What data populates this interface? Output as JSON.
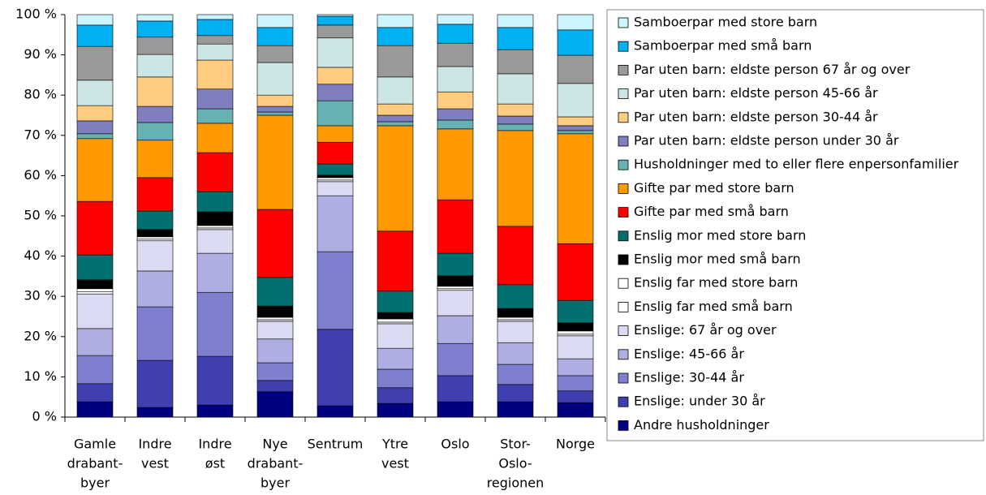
{
  "chart_data": {
    "type": "stacked_bar",
    "categories": [
      [
        "Gamle",
        "drabant-",
        "byer"
      ],
      [
        "Indre",
        "vest"
      ],
      [
        "Indre",
        "øst"
      ],
      [
        "Nye",
        "drabant-",
        "byer"
      ],
      [
        "Sentrum"
      ],
      [
        "Ytre",
        "vest"
      ],
      [
        "Oslo"
      ],
      [
        "Stor-",
        "Oslo-",
        "regionen"
      ],
      [
        "Norge"
      ]
    ],
    "ylim": [
      0,
      100
    ],
    "yticks": [
      {
        "value": 0,
        "label": "0 %"
      },
      {
        "value": 10,
        "label": "10 %"
      },
      {
        "value": 20,
        "label": "20 %"
      },
      {
        "value": 30,
        "label": "30 %"
      },
      {
        "value": 40,
        "label": "40 %"
      },
      {
        "value": 50,
        "label": "50 %"
      },
      {
        "value": 60,
        "label": "60 %"
      },
      {
        "value": 70,
        "label": "70 %"
      },
      {
        "value": 80,
        "label": "80 %"
      },
      {
        "value": 90,
        "label": "90 %"
      },
      {
        "value": 100,
        "label": "100 %"
      }
    ],
    "legend": "right",
    "series": [
      {
        "name": "Andre husholdninger",
        "color": "#000080",
        "values": [
          3.8,
          2.4,
          3.0,
          6.3,
          2.8,
          3.4,
          3.8,
          3.8,
          3.6
        ]
      },
      {
        "name": "Enslige: under 30 år",
        "color": "#3f3fb0",
        "values": [
          4.5,
          11.7,
          12.1,
          2.8,
          19.0,
          3.9,
          6.5,
          4.3,
          2.9
        ]
      },
      {
        "name": "Enslige: 30-44 år",
        "color": "#7f7fcf",
        "values": [
          7.0,
          13.3,
          15.9,
          4.4,
          19.3,
          4.6,
          8.0,
          5.0,
          3.8
        ]
      },
      {
        "name": "Enslige: 45-66 år",
        "color": "#aeaee2",
        "values": [
          6.7,
          8.9,
          9.7,
          5.9,
          13.9,
          5.2,
          6.9,
          5.4,
          4.2
        ]
      },
      {
        "name": "Enslige: 67 år og over",
        "color": "#dadaf2",
        "values": [
          8.6,
          7.5,
          5.9,
          4.4,
          3.5,
          6.1,
          6.3,
          5.3,
          5.7
        ]
      },
      {
        "name": "Enslig far med små barn",
        "color": "#ffffff",
        "values": [
          0.6,
          0.4,
          0.4,
          0.4,
          0.4,
          0.4,
          0.4,
          0.4,
          0.4
        ]
      },
      {
        "name": "Enslig far med store barn",
        "color": "#ffffff",
        "values": [
          0.7,
          0.6,
          0.6,
          0.6,
          0.6,
          0.8,
          0.6,
          0.6,
          0.8
        ]
      },
      {
        "name": "Enslig mor med små barn",
        "color": "#000000",
        "values": [
          2.2,
          1.8,
          3.4,
          2.8,
          0.6,
          1.6,
          2.6,
          2.2,
          2.0
        ]
      },
      {
        "name": "Enslig mor med store barn",
        "color": "#007070",
        "values": [
          6.2,
          4.6,
          5.0,
          7.1,
          2.8,
          5.3,
          5.6,
          5.9,
          5.6
        ]
      },
      {
        "name": "Gifte par med små barn",
        "color": "#ff0000",
        "values": [
          13.3,
          8.3,
          9.7,
          16.9,
          5.4,
          14.9,
          13.3,
          14.5,
          14.1
        ]
      },
      {
        "name": "Gifte par med store barn",
        "color": "#ff9900",
        "values": [
          15.6,
          9.3,
          7.3,
          23.4,
          4.1,
          26.2,
          17.6,
          23.8,
          27.3
        ]
      },
      {
        "name": "Husholdninger med to eller flere enpersonfamilier",
        "color": "#66b2b2",
        "values": [
          1.2,
          4.4,
          3.6,
          0.8,
          6.2,
          1.0,
          2.2,
          1.6,
          0.8
        ]
      },
      {
        "name": "Par uten barn: eldste person under 30 år",
        "color": "#7f7fbf",
        "values": [
          3.2,
          4.0,
          4.9,
          1.4,
          4.1,
          1.6,
          2.8,
          2.0,
          1.2
        ]
      },
      {
        "name": "Par uten barn: eldste person 30-44 år",
        "color": "#ffcc80",
        "values": [
          3.8,
          7.3,
          7.2,
          2.8,
          4.2,
          2.8,
          4.2,
          3.0,
          2.2
        ]
      },
      {
        "name": "Par uten barn: eldste person 45-66 år",
        "color": "#cce6e6",
        "values": [
          6.3,
          5.6,
          4.0,
          8.1,
          7.3,
          6.7,
          6.3,
          7.5,
          8.3
        ]
      },
      {
        "name": "Par uten barn: eldste person 67 år og over",
        "color": "#999999",
        "values": [
          8.4,
          4.3,
          2.1,
          4.2,
          3.2,
          7.8,
          5.8,
          6.0,
          7.0
        ]
      },
      {
        "name": "Samboerpar med små barn",
        "color": "#00b0f0",
        "values": [
          5.3,
          4.0,
          4.0,
          4.5,
          2.2,
          4.5,
          4.7,
          5.5,
          6.3
        ]
      },
      {
        "name": "Samboerpar med store barn",
        "color": "#ccf5ff",
        "values": [
          2.6,
          1.6,
          1.2,
          3.2,
          0.4,
          3.2,
          2.4,
          3.2,
          3.8
        ]
      }
    ]
  }
}
